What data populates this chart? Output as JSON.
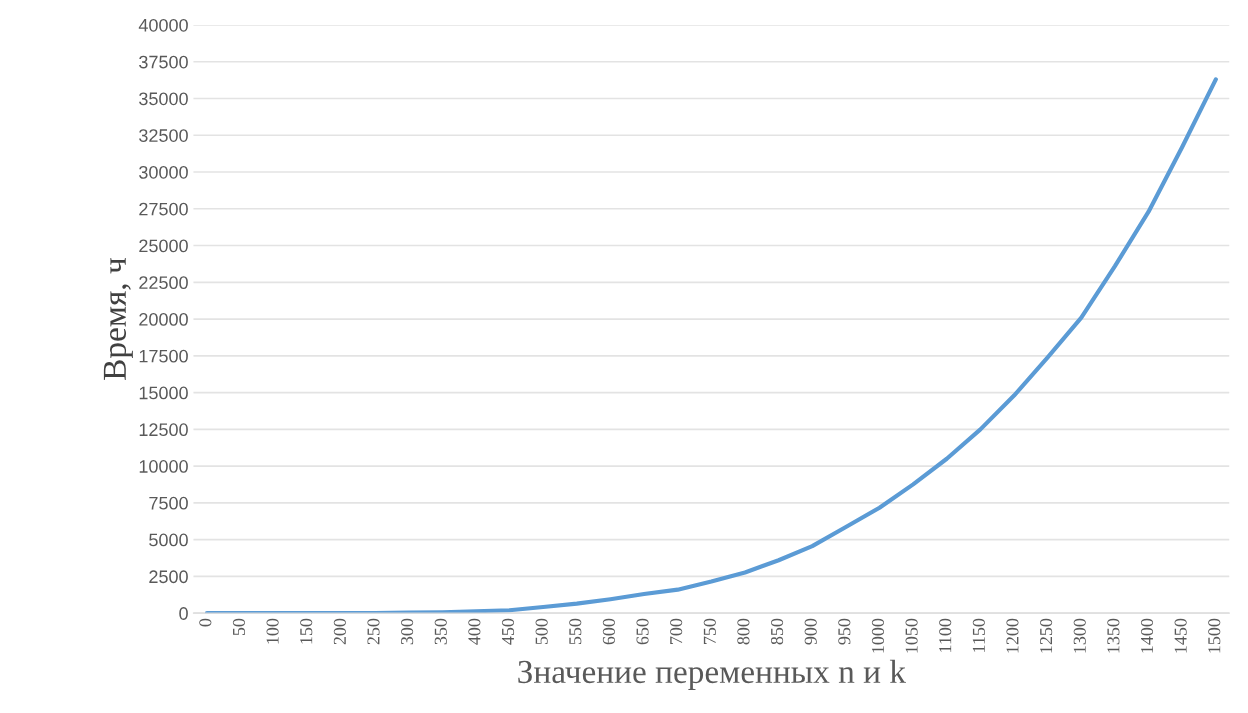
{
  "chart_data": {
    "type": "line",
    "xlabel": "Значение переменных n и k",
    "ylabel": "Время, ч",
    "categories": [
      "0",
      "50",
      "100",
      "150",
      "200",
      "250",
      "300",
      "350",
      "400",
      "450",
      "500",
      "550",
      "600",
      "650",
      "700",
      "750",
      "800",
      "850",
      "900",
      "950",
      "1000",
      "1050",
      "1100",
      "1150",
      "1200",
      "1250",
      "1300",
      "1350",
      "1400",
      "1450",
      "1500"
    ],
    "series": [
      {
        "color": "#5b9bd5",
        "values": [
          0,
          0,
          0,
          0,
          5,
          10,
          40,
          60,
          130,
          200,
          420,
          650,
          950,
          1300,
          1600,
          2150,
          2770,
          3600,
          4560,
          5860,
          7170,
          8760,
          10500,
          12500,
          14800,
          17400,
          20100,
          23600,
          27300,
          31700,
          36300
        ]
      }
    ],
    "ylim": [
      0,
      40000
    ],
    "yticks": [
      0,
      2500,
      5000,
      7500,
      10000,
      12500,
      15000,
      17500,
      20000,
      22500,
      25000,
      27500,
      30000,
      32500,
      35000,
      37500,
      40000
    ],
    "grid": "y",
    "line_style": "solid",
    "marker": "none"
  }
}
